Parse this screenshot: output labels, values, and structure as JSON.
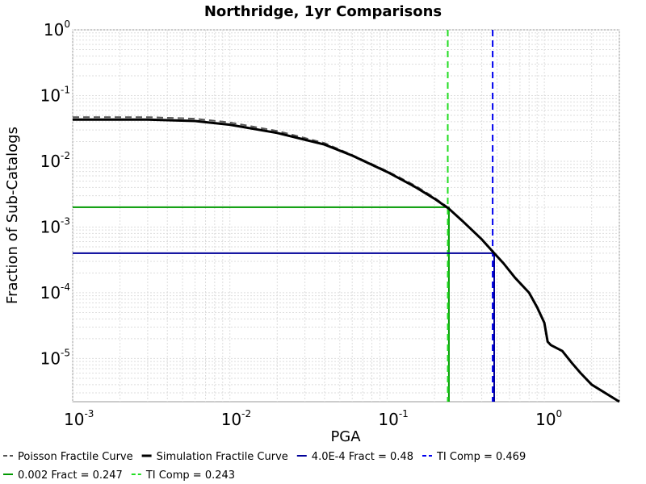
{
  "chart_data": {
    "type": "line",
    "title": "Northridge, 1yr Comparisons",
    "xlabel": "PGA",
    "ylabel": "Fraction of Sub-Catalogs",
    "x_scale": "log",
    "y_scale": "log",
    "xlim": [
      0.001,
      3.0
    ],
    "ylim": [
      2.2e-06,
      1.0
    ],
    "grid": true,
    "legend_position": "bottom",
    "x_ticks": [
      {
        "base": "10",
        "exp": "-3",
        "value": 0.001
      },
      {
        "base": "10",
        "exp": "-2",
        "value": 0.01
      },
      {
        "base": "10",
        "exp": "-1",
        "value": 0.1
      },
      {
        "base": "10",
        "exp": "0",
        "value": 1
      }
    ],
    "y_ticks": [
      {
        "base": "10",
        "exp": "0",
        "value": 1
      },
      {
        "base": "10",
        "exp": "-1",
        "value": 0.1
      },
      {
        "base": "10",
        "exp": "-2",
        "value": 0.01
      },
      {
        "base": "10",
        "exp": "-3",
        "value": 0.001
      },
      {
        "base": "10",
        "exp": "-4",
        "value": 0.0001
      },
      {
        "base": "10",
        "exp": "-5",
        "value": 1e-05
      }
    ],
    "series": [
      {
        "name": "Poisson Fractile Curve",
        "color": "#555555",
        "style": "dashed",
        "points": [
          [
            0.001,
            0.047
          ],
          [
            0.003,
            0.047
          ],
          [
            0.006,
            0.0445
          ],
          [
            0.01,
            0.039
          ],
          [
            0.02,
            0.029
          ],
          [
            0.04,
            0.019
          ],
          [
            0.06,
            0.0125
          ],
          [
            0.1,
            0.0071
          ],
          [
            0.15,
            0.0043
          ],
          [
            0.2,
            0.0028
          ],
          [
            0.25,
            0.0019
          ]
        ]
      },
      {
        "name": "Simulation Fractile Curve",
        "color": "#000000",
        "style": "solid",
        "points": [
          [
            0.001,
            0.043
          ],
          [
            0.003,
            0.043
          ],
          [
            0.006,
            0.041
          ],
          [
            0.01,
            0.036
          ],
          [
            0.02,
            0.027
          ],
          [
            0.04,
            0.018
          ],
          [
            0.06,
            0.0122
          ],
          [
            0.1,
            0.0069
          ],
          [
            0.15,
            0.0041
          ],
          [
            0.2,
            0.0027
          ],
          [
            0.247,
            0.0019
          ],
          [
            0.3,
            0.00125
          ],
          [
            0.4,
            0.00065
          ],
          [
            0.48,
            0.0004
          ],
          [
            0.55,
            0.00028
          ],
          [
            0.65,
            0.00017
          ],
          [
            0.8,
            0.0001
          ],
          [
            0.9,
            6e-05
          ],
          [
            1.0,
            3.5e-05
          ],
          [
            1.05,
            1.8e-05
          ],
          [
            1.1,
            1.6e-05
          ],
          [
            1.3,
            1.3e-05
          ],
          [
            1.5,
            8.5e-06
          ],
          [
            1.7,
            6e-06
          ],
          [
            2.0,
            4e-06
          ],
          [
            3.0,
            2.2e-06
          ]
        ]
      },
      {
        "name": "4.0E-4 Fract = 0.48",
        "color": "#000099",
        "style": "solid",
        "points": [
          [
            0.001,
            0.0004
          ],
          [
            0.48,
            0.0004
          ],
          [
            0.48,
            2.2e-06
          ]
        ]
      },
      {
        "name": "TI Comp = 0.469",
        "color": "#0000ee",
        "style": "dashed",
        "points": [
          [
            0.469,
            1.0
          ],
          [
            0.469,
            2.2e-06
          ]
        ]
      },
      {
        "name": "0.002 Fract = 0.247",
        "color": "#009900",
        "style": "solid",
        "points": [
          [
            0.001,
            0.002
          ],
          [
            0.247,
            0.002
          ],
          [
            0.247,
            2.2e-06
          ]
        ]
      },
      {
        "name": "TI Comp = 0.243",
        "color": "#22dd22",
        "style": "dashed",
        "points": [
          [
            0.243,
            1.0
          ],
          [
            0.243,
            2.2e-06
          ]
        ]
      }
    ]
  }
}
